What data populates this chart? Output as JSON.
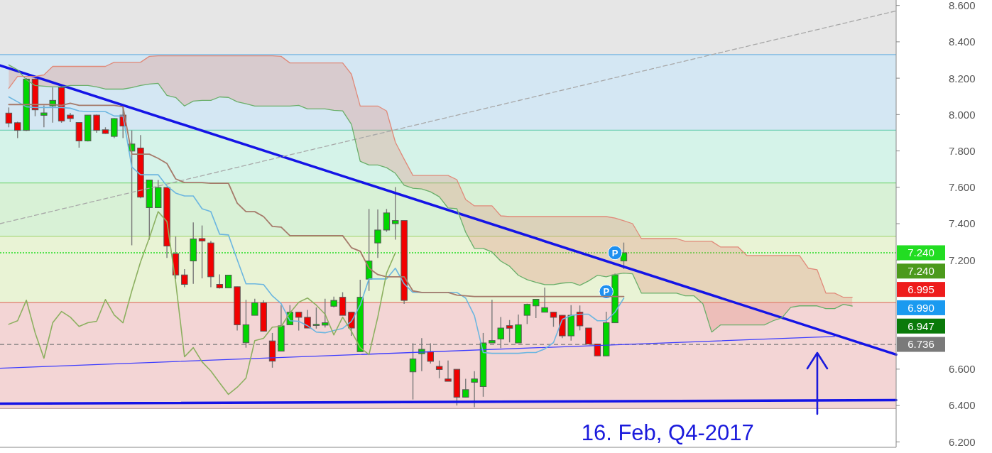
{
  "chart_data": {
    "type": "candlestick",
    "categories": [
      null,
      null,
      null,
      null,
      null,
      null,
      null,
      null,
      null,
      null,
      null,
      null,
      null,
      null,
      null,
      null,
      null,
      null,
      null,
      null,
      null,
      null,
      null,
      null,
      null,
      null,
      null,
      null,
      null,
      null,
      null,
      null,
      null,
      null,
      null,
      null,
      null,
      null,
      null,
      null,
      null,
      null,
      null,
      null,
      null,
      null,
      null,
      null,
      null,
      null,
      null,
      null,
      null,
      null,
      null,
      null,
      null,
      null,
      null,
      null,
      null,
      null,
      null,
      null,
      null,
      null,
      null,
      null,
      null,
      null,
      null,
      null,
      null,
      null,
      null,
      null,
      null,
      null,
      null,
      null,
      null,
      null,
      null,
      null,
      null,
      null,
      null,
      null,
      null,
      null,
      null,
      null,
      null,
      null,
      null,
      null,
      null,
      null,
      null,
      null,
      null,
      null,
      null
    ],
    "ohlc": [
      null,
      [
        8.008,
        8.039,
        7.93,
        7.953
      ],
      [
        7.955,
        7.96,
        7.871,
        7.913
      ],
      [
        7.913,
        8.2,
        7.91,
        8.195
      ],
      [
        8.195,
        8.2,
        7.991,
        8.026
      ],
      [
        7.996,
        8.05,
        7.93,
        8.009
      ],
      [
        8.048,
        8.149,
        7.955,
        8.078
      ],
      [
        8.149,
        8.152,
        7.955,
        7.965
      ],
      [
        7.997,
        8.009,
        7.958,
        7.978
      ],
      [
        7.956,
        7.958,
        7.818,
        7.855
      ],
      [
        7.855,
        7.997,
        7.852,
        7.997
      ],
      [
        7.997,
        7.999,
        7.9,
        7.913
      ],
      [
        7.916,
        7.93,
        7.894,
        7.896
      ],
      [
        7.88,
        7.98,
        7.871,
        7.978
      ],
      [
        7.997,
        8.055,
        7.871,
        7.937
      ],
      [
        7.799,
        7.913,
        7.281,
        7.838
      ],
      [
        7.816,
        7.887,
        7.54,
        7.546
      ],
      [
        7.488,
        7.64,
        7.312,
        7.64
      ],
      [
        7.488,
        7.64,
        7.488,
        7.599
      ],
      [
        7.599,
        7.6,
        7.212,
        7.277
      ],
      [
        7.235,
        7.329,
        7.095,
        7.118
      ],
      [
        7.118,
        7.15,
        7.051,
        7.066
      ],
      [
        7.195,
        7.407,
        7.069,
        7.316
      ],
      [
        7.318,
        7.39,
        7.099,
        7.305
      ],
      [
        7.294,
        7.305,
        7.051,
        7.108
      ],
      [
        7.066,
        7.121,
        7.043,
        7.047
      ],
      [
        7.047,
        7.117,
        7.047,
        7.117
      ],
      [
        7.053,
        7.053,
        6.812,
        6.844
      ],
      [
        6.745,
        6.981,
        6.718,
        6.844
      ],
      [
        6.896,
        6.987,
        6.896,
        6.965
      ],
      [
        6.965,
        6.978,
        6.809,
        6.809
      ],
      [
        6.755,
        6.799,
        6.608,
        6.644
      ],
      [
        6.699,
        6.952,
        6.699,
        6.838
      ],
      [
        6.844,
        6.952,
        6.844,
        6.913
      ],
      [
        6.913,
        6.913,
        6.812,
        6.885
      ],
      [
        6.885,
        6.926,
        6.826,
        6.826
      ],
      [
        6.843,
        6.939,
        6.823,
        6.846
      ],
      [
        6.842,
        6.987,
        6.829,
        6.855
      ],
      [
        6.946,
        6.999,
        6.939,
        6.978
      ],
      [
        6.995,
        7.023,
        6.896,
        6.896
      ],
      [
        6.913,
        6.913,
        6.783,
        6.826
      ],
      [
        6.696,
        7.092,
        6.696,
        6.995
      ],
      [
        7.095,
        7.481,
        7.03,
        7.195
      ],
      [
        7.294,
        7.478,
        7.212,
        7.365
      ],
      [
        7.365,
        7.481,
        7.355,
        7.459
      ],
      [
        7.4,
        7.601,
        7.312,
        7.417
      ],
      [
        7.417,
        7.417,
        6.959,
        6.978
      ],
      [
        6.585,
        6.742,
        6.433,
        6.656
      ],
      [
        6.685,
        6.77,
        6.589,
        6.709
      ],
      [
        6.696,
        6.742,
        6.631,
        6.643
      ],
      [
        6.615,
        6.647,
        6.55,
        6.598
      ],
      [
        6.546,
        6.647,
        6.533,
        6.533
      ],
      [
        6.599,
        6.599,
        6.4,
        6.446
      ],
      [
        6.446,
        6.547,
        6.446,
        6.487
      ],
      [
        6.528,
        6.589,
        6.391,
        6.546
      ],
      [
        6.504,
        6.799,
        6.448,
        6.744
      ],
      [
        6.744,
        6.981,
        6.744,
        6.757
      ],
      [
        6.766,
        6.887,
        6.716,
        6.826
      ],
      [
        6.839,
        6.87,
        6.747,
        6.825
      ],
      [
        6.744,
        6.9,
        6.744,
        6.844
      ],
      [
        6.896,
        6.96,
        6.848,
        6.956
      ],
      [
        6.948,
        6.984,
        6.881,
        6.984
      ],
      [
        6.913,
        7.049,
        6.913,
        6.938
      ],
      [
        6.913,
        6.913,
        6.833,
        6.885
      ],
      [
        6.896,
        6.896,
        6.77,
        6.783
      ],
      [
        6.783,
        6.952,
        6.757,
        6.896
      ],
      [
        6.913,
        6.95,
        6.813,
        6.838
      ],
      [
        6.826,
        6.826,
        6.738,
        6.738
      ],
      [
        6.738,
        6.738,
        6.673,
        6.673
      ],
      [
        6.673,
        6.916,
        6.673,
        6.855
      ],
      [
        6.855,
        7.126,
        6.855,
        7.118
      ],
      [
        7.195,
        7.296,
        7.15,
        7.24
      ],
      null,
      null,
      null,
      null,
      null,
      null,
      null,
      null,
      null,
      null,
      null,
      null,
      null,
      null,
      null,
      null,
      null,
      null,
      null,
      null,
      null,
      null,
      null,
      null,
      null,
      null,
      null,
      null,
      null,
      null,
      null
    ],
    "colors": [
      null,
      "#f20000",
      "#f20000",
      "#00d600",
      "#f20000",
      "#00d600",
      "#00d600",
      "#f20000",
      "#f20000",
      "#f20000",
      "#00d600",
      "#f20000",
      "#f20000",
      "#00d600",
      "#f20000",
      "#00d600",
      "#f20000",
      "#00d600",
      "#00d600",
      "#f20000",
      "#f20000",
      "#f20000",
      "#00d600",
      "#f20000",
      "#f20000",
      "#f20000",
      "#00d600",
      "#f20000",
      "#00d600",
      "#00d600",
      "#f20000",
      "#f20000",
      "#00d600",
      "#00d600",
      "#f20000",
      "#f20000",
      "#00d600",
      "#00d600",
      "#00d600",
      "#f20000",
      "#f20000",
      "#00d600",
      "#00d600",
      "#00d600",
      "#00d600",
      "#00d600",
      "#f20000",
      "#00d600",
      "#00d600",
      "#f20000",
      "#f20000",
      "#f20000",
      "#f20000",
      "#00d600",
      "#00d600",
      "#00d600",
      "#00d600",
      "#00d600",
      "#f20000",
      "#00d600",
      "#00d600",
      "#00d600",
      "#00d600",
      "#f20000",
      "#f20000",
      "#00d600",
      "#f20000",
      "#f20000",
      "#f20000",
      "#00d600",
      "#00d600",
      "#00d600",
      null,
      null,
      null,
      null,
      null,
      null,
      null,
      null,
      null,
      null,
      null,
      null,
      null,
      null,
      null,
      null,
      null,
      null,
      null,
      null,
      null,
      null,
      null,
      null,
      null,
      null,
      null,
      null,
      null,
      null,
      null
    ],
    "series": [
      {
        "type": "line",
        "color": "#6cb6e0",
        "values": [
          null,
          8.097,
          8.07,
          8.043,
          8.039,
          8.039,
          8.039,
          8.039,
          8.035,
          8.02,
          8.016,
          8.016,
          8.016,
          7.992,
          7.992,
          7.712,
          7.669,
          7.669,
          7.669,
          7.607,
          7.568,
          7.552,
          7.552,
          7.482,
          7.466,
          7.342,
          7.338,
          7.202,
          7.069,
          7.069,
          7.065,
          7.003,
          6.96,
          6.866,
          6.863,
          6.839,
          6.804,
          6.8,
          6.812,
          6.824,
          6.863,
          6.952,
          7.096,
          7.096,
          7.096,
          7.155,
          7.069,
          7.022,
          7.022,
          7.022,
          7.022,
          7.022,
          7.022,
          6.991,
          6.894,
          6.691,
          6.687,
          6.687,
          6.687,
          6.687,
          6.691,
          6.691,
          6.711,
          6.746,
          6.874,
          6.894,
          6.902,
          6.902,
          6.866,
          6.866,
          6.913,
          6.99,
          null,
          null,
          null,
          null,
          null,
          null,
          null,
          null,
          null,
          null,
          null,
          null,
          null,
          null,
          null,
          null,
          null,
          null,
          null,
          null,
          null,
          null,
          null,
          null,
          null,
          null,
          null,
          null,
          null,
          null,
          null
        ]
      },
      {
        "type": "line",
        "color": "#a57a6a",
        "values": [
          null,
          8.055,
          8.055,
          8.055,
          8.055,
          8.055,
          8.055,
          8.051,
          8.062,
          8.051,
          8.051,
          8.051,
          8.051,
          8.051,
          8.043,
          7.782,
          7.782,
          7.782,
          7.759,
          7.731,
          7.646,
          7.626,
          7.626,
          7.626,
          7.622,
          7.622,
          7.622,
          7.513,
          7.466,
          7.466,
          7.439,
          7.385,
          7.381,
          7.334,
          7.334,
          7.334,
          7.334,
          7.334,
          7.334,
          7.334,
          7.268,
          7.248,
          7.155,
          7.12,
          7.108,
          7.108,
          7.108,
          7.03,
          7.022,
          7.022,
          7.022,
          7.022,
          7.007,
          7.003,
          6.999,
          6.999,
          6.999,
          6.999,
          6.999,
          6.999,
          6.999,
          6.999,
          6.999,
          6.999,
          6.999,
          6.999,
          6.999,
          6.999,
          6.999,
          6.999,
          6.999,
          6.999,
          null,
          null,
          null,
          null,
          null,
          null,
          null,
          null,
          null,
          null,
          null,
          null,
          null,
          null,
          null,
          null,
          null,
          null,
          null,
          null,
          null,
          null,
          null,
          null,
          null,
          null,
          null,
          null,
          null,
          null,
          null
        ]
      },
      {
        "type": "line",
        "color": "#8cb060",
        "values": [
          null,
          6.847,
          6.866,
          6.979,
          6.8,
          6.66,
          6.855,
          6.917,
          6.886,
          6.835,
          6.855,
          6.863,
          6.983,
          6.898,
          6.855,
          7.03,
          7.19,
          7.322,
          7.466,
          7.412,
          7.077,
          6.668,
          6.718,
          6.64,
          6.59,
          6.524,
          6.461,
          6.5,
          6.551,
          6.757,
          6.769,
          6.831,
          6.835,
          6.909,
          6.968,
          6.991,
          6.952,
          6.902,
          6.788,
          6.886,
          6.808,
          6.718,
          6.68,
          6.886,
          7.128,
          7.24,
          null,
          null,
          null,
          null,
          null,
          null,
          null,
          null,
          null,
          null,
          null,
          null,
          null,
          null,
          null,
          null,
          null,
          null,
          null,
          null,
          null,
          null,
          null,
          null,
          null,
          null,
          null,
          null,
          null,
          null,
          null,
          null,
          null,
          null,
          null,
          null,
          null,
          null,
          null,
          null,
          null,
          null,
          null,
          null,
          null,
          null,
          null,
          null,
          null,
          null,
          null,
          null,
          null,
          null,
          null,
          null,
          null
        ]
      },
      {
        "type": "line",
        "color": "#6aaf6a",
        "values": [
          null,
          8.273,
          8.246,
          8.191,
          8.16,
          8.156,
          8.152,
          8.152,
          8.16,
          8.16,
          8.16,
          8.152,
          8.14,
          8.14,
          8.14,
          8.148,
          8.16,
          8.168,
          8.172,
          8.105,
          8.094,
          8.047,
          8.074,
          8.078,
          8.078,
          8.097,
          8.094,
          8.07,
          8.059,
          8.047,
          8.047,
          8.047,
          8.047,
          8.047,
          8.051,
          8.031,
          8.031,
          8.031,
          8.023,
          8.02,
          7.946,
          7.743,
          7.723,
          7.723,
          7.708,
          7.677,
          7.611,
          7.595,
          7.591,
          7.575,
          7.548,
          7.486,
          7.482,
          7.353,
          7.264,
          7.264,
          7.244,
          7.194,
          7.166,
          7.116,
          7.092,
          7.077,
          7.065,
          7.065,
          7.073,
          7.077,
          7.061,
          7.085,
          7.116,
          7.108,
          7.12,
          7.128,
          7.124,
          7.018,
          7.018,
          7.018,
          7.018,
          7.018,
          7.003,
          7.003,
          6.96,
          6.804,
          6.843,
          6.843,
          6.843,
          6.843,
          6.843,
          6.843,
          6.866,
          6.882,
          6.94,
          6.948,
          6.948,
          6.948,
          6.933,
          6.933,
          6.956,
          6.947,
          null,
          null,
          null,
          null,
          null
        ]
      },
      {
        "type": "line",
        "color": "#e08a7a",
        "values": [
          null,
          8.144,
          8.21,
          8.21,
          8.21,
          8.218,
          8.265,
          8.265,
          8.265,
          8.265,
          8.265,
          8.265,
          8.265,
          8.288,
          8.288,
          8.288,
          8.288,
          8.32,
          8.323,
          8.323,
          8.323,
          8.323,
          8.323,
          8.323,
          8.323,
          8.323,
          8.323,
          8.323,
          8.323,
          8.323,
          8.323,
          8.323,
          8.32,
          8.284,
          8.284,
          8.284,
          8.284,
          8.284,
          8.284,
          8.284,
          8.222,
          8.047,
          8.047,
          8.047,
          8.02,
          7.848,
          7.755,
          7.665,
          7.665,
          7.665,
          7.665,
          7.665,
          7.642,
          7.533,
          7.498,
          7.498,
          7.498,
          7.443,
          7.439,
          7.439,
          7.439,
          7.439,
          7.439,
          7.439,
          7.439,
          7.439,
          7.439,
          7.439,
          7.439,
          7.439,
          7.431,
          7.416,
          7.4,
          7.318,
          7.318,
          7.318,
          7.318,
          7.318,
          7.303,
          7.303,
          7.303,
          7.303,
          7.272,
          7.272,
          7.272,
          7.225,
          7.225,
          7.225,
          7.225,
          7.225,
          7.225,
          7.225,
          7.155,
          7.147,
          7.018,
          7.018,
          6.995,
          6.995,
          null,
          null,
          null,
          null,
          null
        ],
        "lower": [
          null,
          8.273,
          8.246,
          8.191,
          8.16,
          8.156,
          8.152,
          8.152,
          8.16,
          8.16,
          8.16,
          8.152,
          8.14,
          8.14,
          8.14,
          8.148,
          8.16,
          8.168,
          8.172,
          8.105,
          8.094,
          8.047,
          8.074,
          8.078,
          8.078,
          8.097,
          8.094,
          8.07,
          8.059,
          8.047,
          8.047,
          8.047,
          8.047,
          8.047,
          8.051,
          8.031,
          8.031,
          8.031,
          8.023,
          8.02,
          7.946,
          7.743,
          7.723,
          7.723,
          7.708,
          7.677,
          7.611,
          7.595,
          7.591,
          7.575,
          7.548,
          7.486,
          7.482,
          7.353,
          7.264,
          7.264,
          7.244,
          7.194,
          7.166,
          7.116,
          7.092,
          7.077,
          7.065,
          7.065,
          7.073,
          7.077,
          7.061,
          7.085,
          7.116,
          7.108,
          7.12,
          7.128,
          7.124,
          7.018,
          7.018,
          7.018,
          7.018,
          7.018,
          7.003,
          7.003,
          6.96,
          6.804,
          6.843,
          6.843,
          6.843,
          6.843,
          6.843,
          6.843,
          6.866,
          6.882,
          6.94,
          6.948,
          6.948,
          6.948,
          6.933,
          6.933,
          6.956,
          6.947,
          null,
          null,
          null,
          null,
          null
        ],
        "upper": [
          null,
          8.144,
          8.21,
          8.21,
          8.21,
          8.218,
          8.265,
          8.265,
          8.265,
          8.265,
          8.265,
          8.265,
          8.265,
          8.288,
          8.288,
          8.288,
          8.288,
          8.32,
          8.323,
          8.323,
          8.323,
          8.323,
          8.323,
          8.323,
          8.323,
          8.323,
          8.323,
          8.323,
          8.323,
          8.323,
          8.323,
          8.323,
          8.32,
          8.284,
          8.284,
          8.284,
          8.284,
          8.284,
          8.284,
          8.284,
          8.222,
          8.047,
          8.047,
          8.047,
          8.02,
          7.848,
          7.755,
          7.665,
          7.665,
          7.665,
          7.665,
          7.665,
          7.642,
          7.533,
          7.498,
          7.498,
          7.498,
          7.443,
          7.439,
          7.439,
          7.439,
          7.439,
          7.439,
          7.439,
          7.439,
          7.439,
          7.439,
          7.439,
          7.439,
          7.439,
          7.431,
          7.416,
          7.4,
          7.318,
          7.318,
          7.318,
          7.318,
          7.318,
          7.303,
          7.303,
          7.303,
          7.303,
          7.272,
          7.272,
          7.272,
          7.225,
          7.225,
          7.225,
          7.225,
          7.225,
          7.225,
          7.225,
          7.155,
          7.147,
          7.018,
          7.018,
          6.995,
          6.995,
          null,
          null,
          null,
          null,
          null
        ]
      },
      {
        "type": "line",
        "color": "#1414e6",
        "values": [
          8.27,
          null,
          null,
          null,
          null,
          null,
          null,
          null,
          null,
          null,
          null,
          null,
          null,
          null,
          null,
          null,
          null,
          null,
          null,
          null,
          null,
          null,
          null,
          null,
          null,
          null,
          null,
          null,
          null,
          null,
          null,
          null,
          null,
          null,
          null,
          null,
          null,
          null,
          null,
          null,
          null,
          null,
          null,
          null,
          null,
          null,
          null,
          null,
          null,
          null,
          null,
          null,
          null,
          null,
          null,
          null,
          null,
          null,
          null,
          null,
          null,
          null,
          null,
          null,
          null,
          null,
          null,
          null,
          null,
          null,
          null,
          null,
          null,
          null,
          null,
          null,
          null,
          null,
          null,
          null,
          null,
          null,
          null,
          null,
          null,
          null,
          null,
          null,
          null,
          null,
          null,
          null,
          null,
          null,
          null,
          null,
          null,
          null,
          null,
          null,
          null,
          null,
          6.68
        ]
      },
      {
        "type": "line",
        "color": "#3c3cff",
        "values": [
          6.605,
          null,
          null,
          null,
          null,
          null,
          null,
          null,
          null,
          null,
          null,
          null,
          null,
          null,
          null,
          null,
          null,
          null,
          null,
          null,
          null,
          null,
          null,
          null,
          null,
          null,
          null,
          null,
          null,
          null,
          null,
          null,
          null,
          null,
          null,
          null,
          null,
          null,
          null,
          null,
          null,
          null,
          null,
          null,
          null,
          null,
          null,
          null,
          null,
          null,
          null,
          null,
          null,
          null,
          null,
          null,
          null,
          null,
          null,
          null,
          null,
          null,
          null,
          null,
          null,
          null,
          null,
          null,
          null,
          null,
          null,
          null,
          null,
          null,
          null,
          null,
          null,
          null,
          null,
          null,
          null,
          null,
          null,
          null,
          null,
          null,
          null,
          null,
          null,
          null,
          null,
          null,
          null,
          null,
          null,
          6.78,
          null,
          null,
          null,
          null,
          null,
          null,
          null
        ]
      },
      {
        "type": "line",
        "color": "#1414e6",
        "values": [
          6.41,
          null,
          null,
          null,
          null,
          null,
          null,
          null,
          null,
          null,
          null,
          null,
          null,
          null,
          null,
          null,
          null,
          null,
          null,
          null,
          null,
          null,
          null,
          null,
          null,
          null,
          null,
          null,
          null,
          null,
          null,
          null,
          null,
          null,
          null,
          null,
          null,
          null,
          null,
          null,
          null,
          null,
          null,
          null,
          null,
          null,
          null,
          null,
          null,
          null,
          null,
          null,
          null,
          null,
          null,
          null,
          null,
          null,
          null,
          null,
          null,
          null,
          null,
          null,
          null,
          null,
          null,
          null,
          null,
          null,
          null,
          null,
          null,
          null,
          null,
          null,
          null,
          null,
          null,
          null,
          null,
          null,
          null,
          null,
          null,
          null,
          null,
          null,
          null,
          null,
          null,
          null,
          null,
          null,
          null,
          null,
          null,
          null,
          null,
          null,
          null,
          null,
          6.43
        ]
      },
      {
        "type": "line",
        "color": "#a8a8a8",
        "line_style": "dashed",
        "values": [
          7.4,
          null,
          null,
          null,
          null,
          null,
          null,
          null,
          null,
          null,
          null,
          null,
          null,
          null,
          null,
          null,
          null,
          null,
          null,
          null,
          null,
          null,
          null,
          null,
          null,
          null,
          null,
          null,
          null,
          null,
          null,
          null,
          null,
          null,
          null,
          null,
          null,
          null,
          null,
          null,
          null,
          null,
          null,
          null,
          null,
          null,
          null,
          null,
          null,
          null,
          null,
          null,
          null,
          null,
          null,
          null,
          null,
          null,
          null,
          null,
          null,
          null,
          null,
          null,
          null,
          null,
          null,
          null,
          null,
          null,
          null,
          null,
          null,
          null,
          null,
          null,
          null,
          null,
          null,
          null,
          null,
          null,
          null,
          null,
          null,
          null,
          null,
          null,
          null,
          null,
          null,
          null,
          null,
          null,
          null,
          null,
          null,
          null,
          null,
          null,
          null,
          null,
          8.57
        ]
      },
      {
        "type": "scatter",
        "color": "#1e90f0",
        "marker": "circle",
        "values": [
          null,
          null,
          null,
          null,
          null,
          null,
          null,
          null,
          null,
          null,
          null,
          null,
          null,
          null,
          null,
          null,
          null,
          null,
          null,
          null,
          null,
          null,
          null,
          null,
          null,
          null,
          null,
          null,
          null,
          null,
          null,
          null,
          null,
          null,
          null,
          null,
          null,
          null,
          null,
          null,
          null,
          null,
          null,
          null,
          null,
          null,
          null,
          null,
          null,
          null,
          null,
          null,
          null,
          null,
          null,
          null,
          null,
          null,
          null,
          null,
          null,
          null,
          null,
          null,
          null,
          null,
          null,
          null,
          null,
          7.026,
          7.24,
          null,
          null,
          null,
          null,
          null,
          null,
          null,
          null,
          null,
          null,
          null,
          null,
          null,
          null,
          null,
          null,
          null,
          null,
          null,
          null,
          null,
          null,
          null,
          null,
          null,
          null,
          null,
          null,
          null,
          null,
          null,
          null
        ],
        "value_labels": [
          null,
          null,
          null,
          null,
          null,
          null,
          null,
          null,
          null,
          null,
          null,
          null,
          null,
          null,
          null,
          null,
          null,
          null,
          null,
          null,
          null,
          null,
          null,
          null,
          null,
          null,
          null,
          null,
          null,
          null,
          null,
          null,
          null,
          null,
          null,
          null,
          null,
          null,
          null,
          null,
          null,
          null,
          null,
          null,
          null,
          null,
          null,
          null,
          null,
          null,
          null,
          null,
          null,
          null,
          null,
          null,
          null,
          null,
          null,
          null,
          null,
          null,
          null,
          null,
          null,
          null,
          null,
          null,
          null,
          "P",
          "P",
          null,
          null,
          null,
          null,
          null,
          null,
          null,
          null,
          null,
          null,
          null,
          null,
          null,
          null,
          null,
          null,
          null,
          null,
          null,
          null,
          null,
          null,
          null,
          null,
          null,
          null,
          null,
          null,
          null,
          null,
          null,
          null
        ]
      }
    ],
    "ylim": [
      6.17,
      8.63
    ],
    "yticks": [
      {
        "value": 6.2,
        "label": "6.200"
      },
      {
        "value": 6.4,
        "label": "6.400"
      },
      {
        "value": 6.6,
        "label": "6.600"
      },
      {
        "value": 7.2,
        "label": "7.200"
      },
      {
        "value": 7.4,
        "label": "7.400"
      },
      {
        "value": 7.6,
        "label": "7.600"
      },
      {
        "value": 7.8,
        "label": "7.800"
      },
      {
        "value": 8.0,
        "label": "8.000"
      },
      {
        "value": 8.2,
        "label": "8.200"
      },
      {
        "value": 8.4,
        "label": "8.400"
      },
      {
        "value": 8.6,
        "label": "8.600"
      }
    ],
    "tick_labels": "y",
    "bands": [
      {
        "axis": "y",
        "from": 8.33,
        "to": 8.63,
        "color": "#e6e6e6"
      },
      {
        "axis": "y",
        "from": 7.914,
        "to": 8.33,
        "color": "#d4e7f3"
      },
      {
        "axis": "y",
        "from": 7.624,
        "to": 7.914,
        "color": "#d5f3e9"
      },
      {
        "axis": "y",
        "from": 7.33,
        "to": 7.624,
        "color": "#d8f1d6"
      },
      {
        "axis": "y",
        "from": 6.966,
        "to": 7.33,
        "color": "#e9f3d5"
      },
      {
        "axis": "y",
        "from": 6.383,
        "to": 6.966,
        "color": "#f3d5d5"
      }
    ],
    "ref_lines": [
      {
        "axis": "y",
        "value": 8.33,
        "color": "#74b4e0"
      },
      {
        "axis": "y",
        "value": 7.914,
        "color": "#70d0b5"
      },
      {
        "axis": "y",
        "value": 7.624,
        "color": "#80d880"
      },
      {
        "axis": "y",
        "value": 7.33,
        "color": "#acd880"
      },
      {
        "axis": "y",
        "value": 6.966,
        "color": "#e0786a"
      },
      {
        "axis": "y",
        "value": 6.383,
        "color": "#c0a8a8"
      },
      {
        "axis": "y",
        "value": 7.24,
        "label": "7.240",
        "color": "#22dd22",
        "line_style": "dotted"
      },
      {
        "axis": "y",
        "value": 6.736,
        "label": "6.736",
        "color": "#7a7a7a",
        "line_style": "dashed"
      }
    ],
    "annotations": [
      "16. Feb, Q4-2017",
      "7.240",
      "6.995",
      "6.990",
      "6.947"
    ]
  }
}
